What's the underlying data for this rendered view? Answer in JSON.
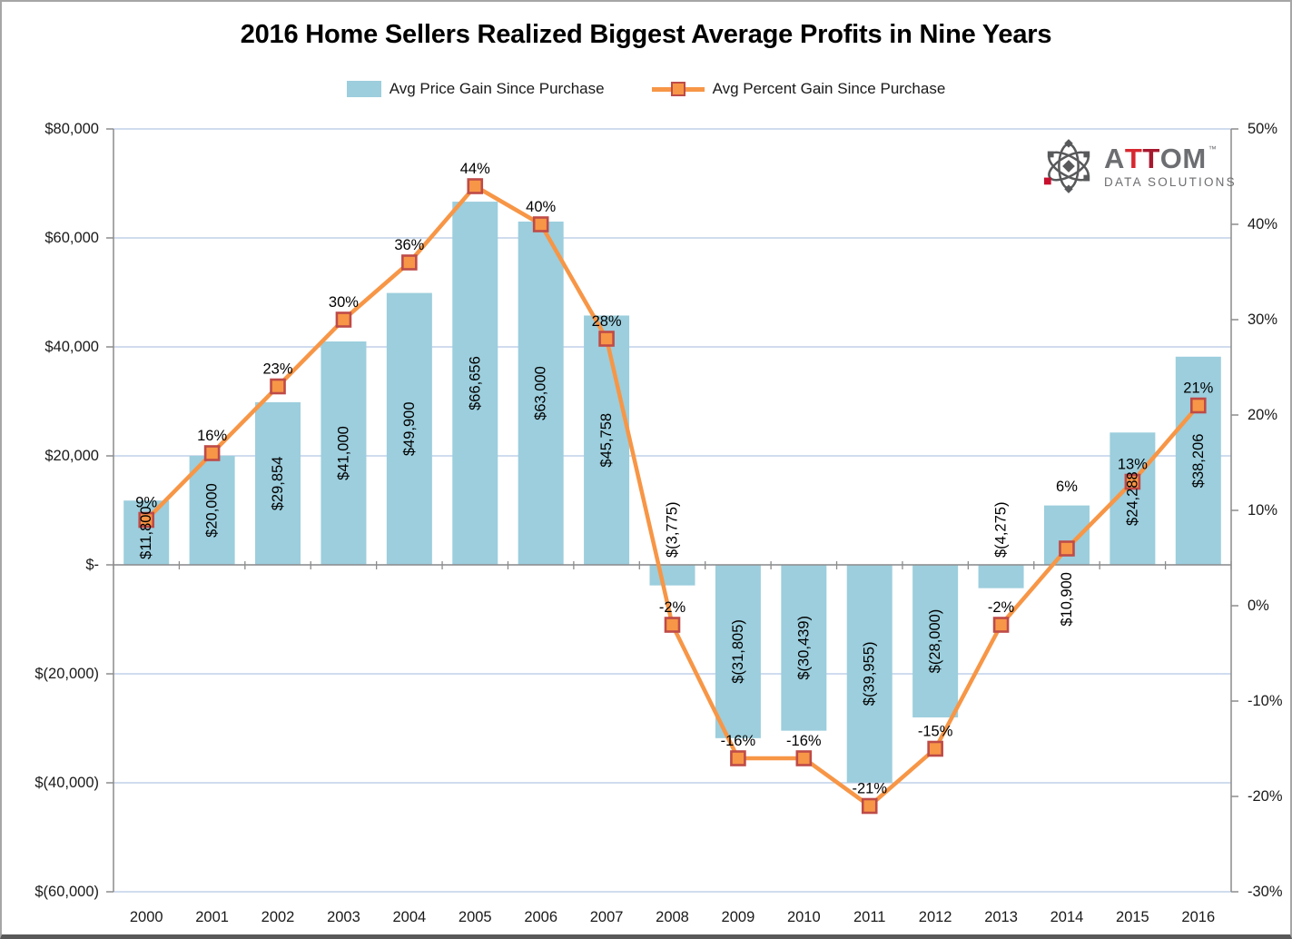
{
  "title": "2016 Home Sellers Realized Biggest Average Profits in Nine Years",
  "legend": {
    "bar_label": "Avg Price Gain Since Purchase",
    "line_label": "Avg Percent Gain Since Purchase"
  },
  "logo": {
    "part_a": "A",
    "part_t1": "T",
    "part_t2": "T",
    "part_om": "OM",
    "tm": "™",
    "subtitle": "DATA SOLUTIONS",
    "colors": {
      "gray": "#6d6e71",
      "icon_gray": "#58595B",
      "red_bright": "#D7282F",
      "red_dark": "#A6192E",
      "red_accent": "#C8102E"
    }
  },
  "chart_data": {
    "type": "bar+line combo",
    "categories": [
      "2000",
      "2001",
      "2002",
      "2003",
      "2004",
      "2005",
      "2006",
      "2007",
      "2008",
      "2009",
      "2010",
      "2011",
      "2012",
      "2013",
      "2014",
      "2015",
      "2016"
    ],
    "series": [
      {
        "name": "Avg Price Gain Since Purchase",
        "type": "bar",
        "axis": "left",
        "color": "#9CCEDD",
        "values": [
          11800,
          20000,
          29854,
          41000,
          49900,
          66656,
          63000,
          45758,
          -3775,
          -31805,
          -30439,
          -39955,
          -28000,
          -4275,
          10900,
          24288,
          38206
        ],
        "labels": [
          "$11,800",
          "$20,000",
          "$29,854",
          "$41,000",
          "$49,900",
          "$66,656",
          "$63,000",
          "$45,758",
          "$(3,775)",
          "$(31,805)",
          "$(30,439)",
          "$(39,955)",
          "$(28,000)",
          "$(4,275)",
          "$10,900",
          "$24,288",
          "$38,206"
        ]
      },
      {
        "name": "Avg Percent Gain Since Purchase",
        "type": "line",
        "axis": "right",
        "color": "#F79646",
        "marker_fill": "#F79646",
        "marker_border": "#BE4B48",
        "values": [
          9,
          16,
          23,
          30,
          36,
          44,
          40,
          28,
          -2,
          -16,
          -16,
          -21,
          -15,
          -2,
          6,
          13,
          21
        ],
        "labels": [
          "9%",
          "16%",
          "23%",
          "30%",
          "36%",
          "44%",
          "40%",
          "28%",
          "-2%",
          "-16%",
          "-16%",
          "-21%",
          "-15%",
          "-2%",
          "6%",
          "13%",
          "21%"
        ],
        "label_offsets": {
          "14": -49
        }
      }
    ],
    "left_axis": {
      "min": -60000,
      "max": 80000,
      "step": 20000,
      "tick_labels": [
        "$80,000",
        "$60,000",
        "$40,000",
        "$20,000",
        "$-",
        "$(20,000)",
        "$(40,000)",
        "$(60,000)"
      ]
    },
    "right_axis": {
      "min": -30,
      "max": 50,
      "step": 10,
      "tick_labels": [
        "50%",
        "40%",
        "30%",
        "20%",
        "10%",
        "0%",
        "-10%",
        "-20%",
        "-30%"
      ]
    },
    "gridlines": true,
    "legend_position": "top",
    "colors": {
      "grid": "#B5C7E3",
      "axis": "#8C8C8C",
      "text": "#1A1A1A"
    }
  }
}
